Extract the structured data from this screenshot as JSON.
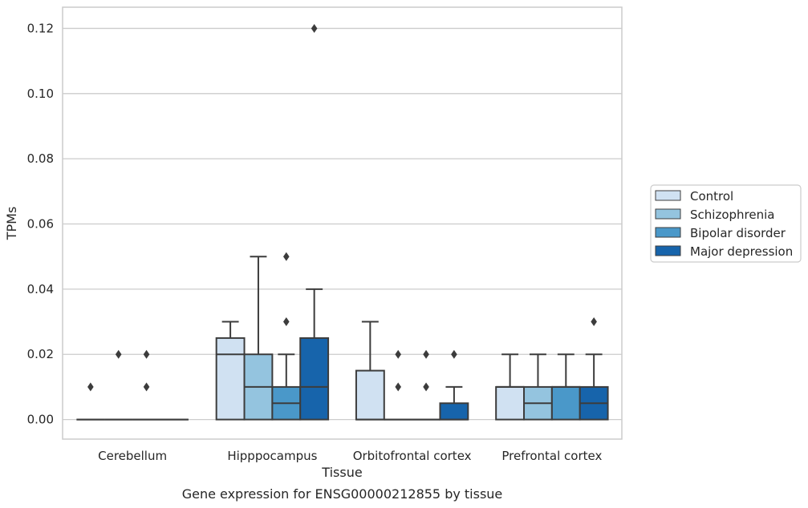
{
  "chart_data": {
    "type": "box",
    "title": "",
    "caption": "Gene expression for ENSG00000212855 by tissue",
    "xlabel": "Tissue",
    "ylabel": "TPMs",
    "ylim": [
      -0.006,
      0.1265
    ],
    "yticks": [
      "0.00",
      "0.02",
      "0.04",
      "0.06",
      "0.08",
      "0.10",
      "0.12"
    ],
    "ytick_values": [
      0.0,
      0.02,
      0.04,
      0.06,
      0.08,
      0.1,
      0.12
    ],
    "categories": [
      "Cerebellum",
      "Hipppocampus",
      "Orbitofrontal cortex",
      "Prefrontal cortex"
    ],
    "grid": "horizontal",
    "legend_position": "right",
    "series": [
      {
        "name": "Control",
        "color": "#d0e1f2",
        "boxes": [
          {
            "q1": 0,
            "median": 0,
            "q3": 0,
            "whisker_low": 0,
            "whisker_high": 0,
            "outliers": [
              0.01
            ]
          },
          {
            "q1": 0,
            "median": 0.02,
            "q3": 0.025,
            "whisker_low": 0,
            "whisker_high": 0.03,
            "outliers": []
          },
          {
            "q1": 0,
            "median": 0,
            "q3": 0.015,
            "whisker_low": 0,
            "whisker_high": 0.03,
            "outliers": []
          },
          {
            "q1": 0,
            "median": 0.01,
            "q3": 0.01,
            "whisker_low": 0,
            "whisker_high": 0.02,
            "outliers": []
          }
        ]
      },
      {
        "name": "Schizophrenia",
        "color": "#94c4df",
        "boxes": [
          {
            "q1": 0,
            "median": 0,
            "q3": 0,
            "whisker_low": 0,
            "whisker_high": 0,
            "outliers": [
              0.02
            ]
          },
          {
            "q1": 0,
            "median": 0.01,
            "q3": 0.02,
            "whisker_low": 0,
            "whisker_high": 0.05,
            "outliers": []
          },
          {
            "q1": 0,
            "median": 0,
            "q3": 0,
            "whisker_low": 0,
            "whisker_high": 0,
            "outliers": [
              0.01,
              0.02
            ]
          },
          {
            "q1": 0,
            "median": 0.005,
            "q3": 0.01,
            "whisker_low": 0,
            "whisker_high": 0.02,
            "outliers": []
          }
        ]
      },
      {
        "name": "Bipolar disorder",
        "color": "#4a98c9",
        "boxes": [
          {
            "q1": 0,
            "median": 0,
            "q3": 0,
            "whisker_low": 0,
            "whisker_high": 0,
            "outliers": [
              0.01,
              0.02
            ]
          },
          {
            "q1": 0,
            "median": 0.005,
            "q3": 0.01,
            "whisker_low": 0,
            "whisker_high": 0.02,
            "outliers": [
              0.03,
              0.05
            ]
          },
          {
            "q1": 0,
            "median": 0,
            "q3": 0,
            "whisker_low": 0,
            "whisker_high": 0,
            "outliers": [
              0.01,
              0.02
            ]
          },
          {
            "q1": 0,
            "median": 0.01,
            "q3": 0.01,
            "whisker_low": 0,
            "whisker_high": 0.02,
            "outliers": []
          }
        ]
      },
      {
        "name": "Major depression",
        "color": "#1764ab",
        "boxes": [
          {
            "q1": 0,
            "median": 0,
            "q3": 0,
            "whisker_low": 0,
            "whisker_high": 0,
            "outliers": []
          },
          {
            "q1": 0,
            "median": 0.01,
            "q3": 0.025,
            "whisker_low": 0,
            "whisker_high": 0.04,
            "outliers": [
              0.12
            ]
          },
          {
            "q1": 0,
            "median": 0,
            "q3": 0.005,
            "whisker_low": 0,
            "whisker_high": 0.01,
            "outliers": [
              0.02
            ]
          },
          {
            "q1": 0,
            "median": 0.005,
            "q3": 0.01,
            "whisker_low": 0,
            "whisker_high": 0.02,
            "outliers": [
              0.03
            ]
          }
        ]
      }
    ]
  }
}
